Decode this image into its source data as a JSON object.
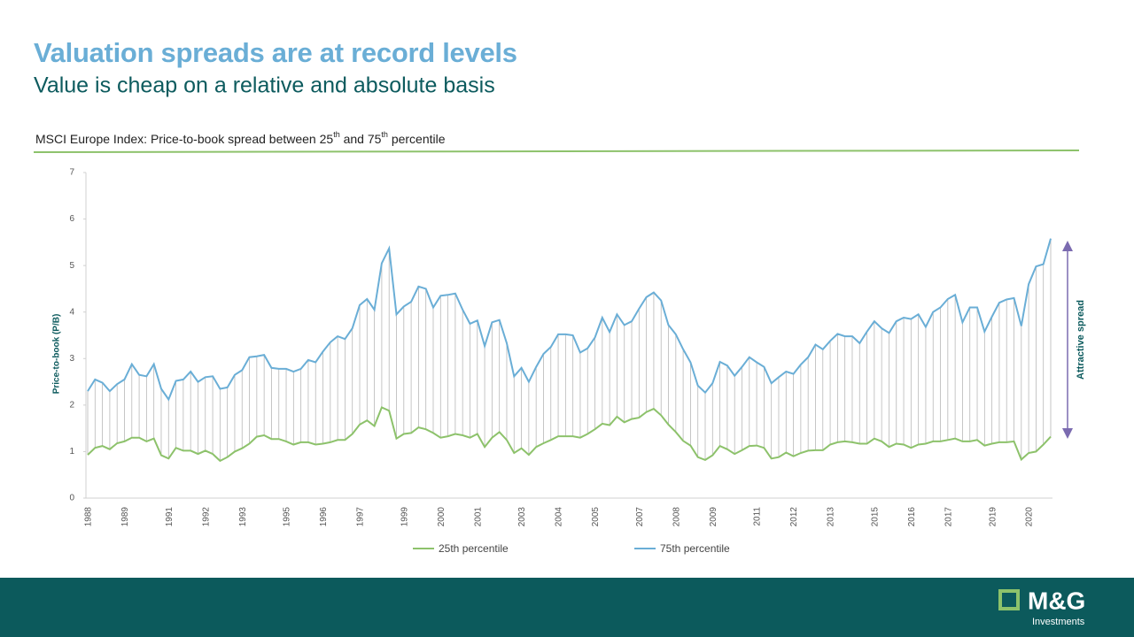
{
  "chart_data": {
    "type": "line",
    "title": "Valuation spreads are at record levels",
    "subtitle": "Value is cheap on a relative and absolute basis",
    "caption_parts": [
      "MSCI Europe Index: Price-to-book spread between  25",
      "th",
      " and 75",
      "th",
      " percentile"
    ],
    "y_label": "Price-to-book (P/B)",
    "annotation": "Attractive spread",
    "ylim": [
      0,
      7
    ],
    "yticks": [
      0,
      1,
      2,
      3,
      4,
      5,
      6,
      7
    ],
    "drop_lines": true,
    "legend": "bottom",
    "categories": [
      "1988",
      null,
      null,
      null,
      null,
      "1989",
      null,
      null,
      null,
      null,
      null,
      "1991",
      null,
      null,
      null,
      null,
      "1992",
      null,
      null,
      null,
      null,
      "1993",
      null,
      null,
      null,
      null,
      null,
      "1995",
      null,
      null,
      null,
      null,
      "1996",
      null,
      null,
      null,
      null,
      "1997",
      null,
      null,
      null,
      null,
      null,
      "1999",
      null,
      null,
      null,
      null,
      "2000",
      null,
      null,
      null,
      null,
      "2001",
      null,
      null,
      null,
      null,
      null,
      "2003",
      null,
      null,
      null,
      null,
      "2004",
      null,
      null,
      null,
      null,
      "2005",
      null,
      null,
      null,
      null,
      null,
      "2007",
      null,
      null,
      null,
      null,
      "2008",
      null,
      null,
      null,
      null,
      "2009",
      null,
      null,
      null,
      null,
      null,
      "2011",
      null,
      null,
      null,
      null,
      "2012",
      null,
      null,
      null,
      null,
      "2013",
      null,
      null,
      null,
      null,
      null,
      "2015",
      null,
      null,
      null,
      null,
      "2016",
      null,
      null,
      null,
      null,
      "2017",
      null,
      null,
      null,
      null,
      null,
      "2019",
      null,
      null,
      null,
      null,
      "2020",
      null,
      null,
      null
    ],
    "series": [
      {
        "name": "25th percentile",
        "color": "#8dc26b",
        "values": [
          0.93,
          1.08,
          1.12,
          1.05,
          1.18,
          1.22,
          1.3,
          1.3,
          1.22,
          1.28,
          0.92,
          0.85,
          1.08,
          1.02,
          1.02,
          0.95,
          1.02,
          0.95,
          0.8,
          0.88,
          1.0,
          1.07,
          1.17,
          1.32,
          1.35,
          1.27,
          1.27,
          1.22,
          1.15,
          1.2,
          1.2,
          1.15,
          1.17,
          1.2,
          1.25,
          1.25,
          1.38,
          1.58,
          1.67,
          1.55,
          1.95,
          1.88,
          1.28,
          1.38,
          1.4,
          1.52,
          1.48,
          1.4,
          1.3,
          1.33,
          1.38,
          1.35,
          1.3,
          1.38,
          1.1,
          1.3,
          1.42,
          1.25,
          0.97,
          1.07,
          0.93,
          1.1,
          1.18,
          1.25,
          1.33,
          1.33,
          1.33,
          1.3,
          1.38,
          1.48,
          1.6,
          1.57,
          1.75,
          1.63,
          1.7,
          1.73,
          1.85,
          1.92,
          1.78,
          1.58,
          1.42,
          1.23,
          1.13,
          0.88,
          0.82,
          0.92,
          1.12,
          1.05,
          0.95,
          1.03,
          1.12,
          1.13,
          1.08,
          0.85,
          0.88,
          0.98,
          0.9,
          0.97,
          1.02,
          1.03,
          1.03,
          1.15,
          1.2,
          1.22,
          1.2,
          1.17,
          1.17,
          1.28,
          1.22,
          1.1,
          1.17,
          1.15,
          1.08,
          1.15,
          1.17,
          1.22,
          1.22,
          1.25,
          1.28,
          1.22,
          1.22,
          1.25,
          1.13,
          1.17,
          1.2,
          1.2,
          1.22,
          0.83,
          0.97,
          1.0,
          1.15,
          1.32
        ]
      },
      {
        "name": "75th percentile",
        "color": "#6aaed6",
        "values": [
          2.3,
          2.55,
          2.48,
          2.3,
          2.45,
          2.55,
          2.88,
          2.65,
          2.62,
          2.88,
          2.35,
          2.12,
          2.52,
          2.55,
          2.72,
          2.5,
          2.6,
          2.62,
          2.35,
          2.38,
          2.65,
          2.75,
          3.03,
          3.05,
          3.08,
          2.8,
          2.78,
          2.78,
          2.72,
          2.78,
          2.97,
          2.92,
          3.15,
          3.35,
          3.48,
          3.42,
          3.65,
          4.15,
          4.28,
          4.05,
          5.05,
          5.37,
          3.95,
          4.12,
          4.22,
          4.55,
          4.5,
          4.1,
          4.35,
          4.37,
          4.4,
          4.05,
          3.75,
          3.82,
          3.27,
          3.78,
          3.83,
          3.33,
          2.62,
          2.8,
          2.5,
          2.82,
          3.1,
          3.25,
          3.52,
          3.52,
          3.5,
          3.13,
          3.22,
          3.45,
          3.88,
          3.57,
          3.95,
          3.72,
          3.8,
          4.07,
          4.32,
          4.42,
          4.25,
          3.72,
          3.52,
          3.2,
          2.92,
          2.42,
          2.27,
          2.47,
          2.93,
          2.85,
          2.63,
          2.82,
          3.03,
          2.92,
          2.82,
          2.47,
          2.6,
          2.72,
          2.67,
          2.87,
          3.03,
          3.3,
          3.2,
          3.38,
          3.53,
          3.48,
          3.48,
          3.33,
          3.58,
          3.8,
          3.65,
          3.55,
          3.8,
          3.88,
          3.85,
          3.95,
          3.68,
          4.0,
          4.1,
          4.28,
          4.37,
          3.78,
          4.1,
          4.1,
          3.58,
          3.9,
          4.2,
          4.27,
          4.3,
          3.7,
          4.6,
          4.98,
          5.03,
          5.58
        ]
      }
    ]
  },
  "footer": {
    "brand": "M&G",
    "tagline": "Investments"
  }
}
